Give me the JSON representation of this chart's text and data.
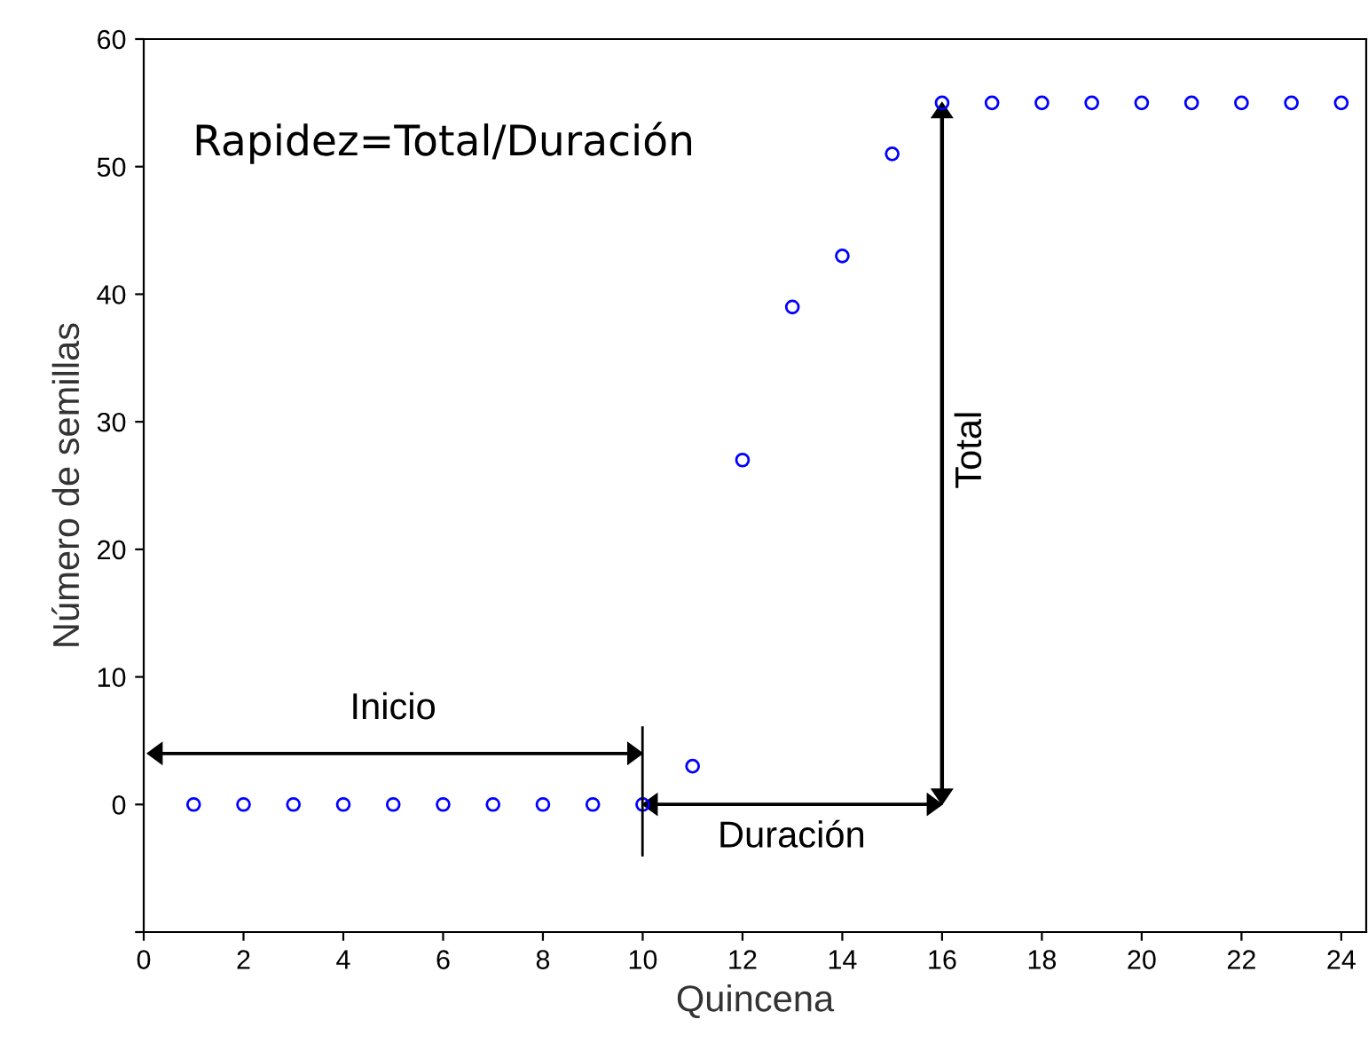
{
  "chart_data": {
    "type": "scatter",
    "xlabel": "Quincena",
    "ylabel": "Número de semillas",
    "x": [
      1,
      2,
      3,
      4,
      5,
      6,
      7,
      8,
      9,
      10,
      11,
      12,
      13,
      14,
      15,
      16,
      17,
      18,
      19,
      20,
      21,
      22,
      23,
      24
    ],
    "series": [
      {
        "color": "#0000ff",
        "values": [
          0,
          0,
          0,
          0,
          0,
          0,
          0,
          0,
          0,
          0,
          3,
          27,
          39,
          43,
          51,
          55,
          55,
          55,
          55,
          55,
          55,
          55,
          55,
          55
        ]
      }
    ],
    "marker": "circle",
    "xlim": [
      0,
      24.5
    ],
    "xticks": [
      0,
      2,
      4,
      6,
      8,
      10,
      12,
      14,
      16,
      18,
      20,
      22,
      24
    ],
    "ylim": [
      -10,
      60
    ],
    "yticks": [
      {
        "value": -10,
        "label": null
      },
      0,
      10,
      20,
      30,
      40,
      50,
      60
    ],
    "grid": false,
    "annotations": [
      "Rapidez=Total/Duración",
      "Inicio",
      "Duración",
      "Total"
    ]
  }
}
